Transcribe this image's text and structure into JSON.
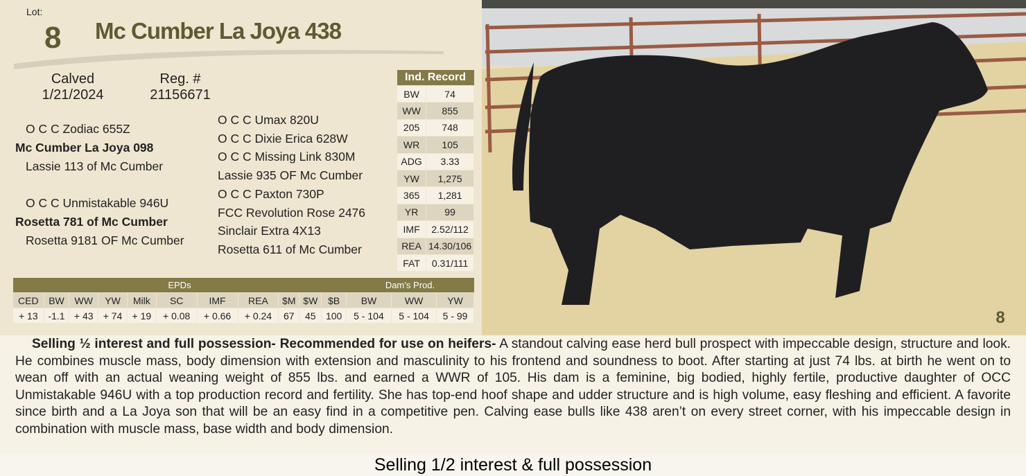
{
  "header": {
    "lot_label": "Lot:",
    "lot_number": "8",
    "name": "Mc Cumber La Joya 438"
  },
  "info": {
    "calved_label": "Calved",
    "calved": "1/21/2024",
    "reg_label": "Reg. #",
    "reg": "21156671"
  },
  "pedigree": {
    "left": [
      {
        "text": "O C C Zodiac 655Z",
        "bold": false
      },
      {
        "text": "Mc Cumber La Joya 098",
        "bold": true
      },
      {
        "text": "Lassie 113 of Mc Cumber",
        "bold": false
      },
      {
        "text": "O C C Unmistakable 946U",
        "bold": false
      },
      {
        "text": "Rosetta 781 of Mc Cumber",
        "bold": true
      },
      {
        "text": "Rosetta 9181 OF Mc Cumber",
        "bold": false
      }
    ],
    "right": [
      "O C C Umax 820U",
      "O C C Dixie Erica 628W",
      "O C C Missing Link 830M",
      "Lassie 935 OF Mc Cumber",
      "O C C Paxton 730P",
      "FCC Revolution Rose 2476",
      "Sinclair Extra 4X13",
      "Rosetta 611 of Mc Cumber"
    ]
  },
  "ind_record": {
    "title": "Ind. Record",
    "rows": [
      [
        "BW",
        "74"
      ],
      [
        "WW",
        "855"
      ],
      [
        "205",
        "748"
      ],
      [
        "WR",
        "105"
      ],
      [
        "ADG",
        "3.33"
      ],
      [
        "YW",
        "1,275"
      ],
      [
        "365",
        "1,281"
      ],
      [
        "YR",
        "99"
      ],
      [
        "IMF",
        "2.52/112"
      ],
      [
        "REA",
        "14.30/106"
      ],
      [
        "FAT",
        "0.31/111"
      ]
    ]
  },
  "epds": {
    "title": "EPDs",
    "dam_title": "Dam’s Prod.",
    "columns": [
      "CED",
      "BW",
      "WW",
      "YW",
      "Milk",
      "SC",
      "IMF",
      "REA",
      "$M",
      "$W",
      "$B",
      "BW",
      "WW",
      "YW"
    ],
    "values": [
      "+ 13",
      "-1.1",
      "+ 43",
      "+ 74",
      "+ 19",
      "+ 0.08",
      "+ 0.66",
      "+ 0.24",
      "67",
      "45",
      "100",
      "5 - 104",
      "5 - 104",
      "5 - 99"
    ]
  },
  "photo": {
    "lot_mark": "8"
  },
  "description": {
    "lead": "Selling ½ interest and full possession- Recommended for use on heifers-",
    "body": " A standout calving ease herd bull prospect with impeccable design, structure and look. He combines muscle mass, body dimension with extension and masculinity to his frontend and soundness to boot. After starting at just 74 lbs. at birth he went on to wean off with an actual weaning weight of 855 lbs. and earned a WWR of 105. His dam is a feminine, big bodied, highly fertile, productive daughter of OCC Unmistakable 946U with a top production record and fertility. She has top-end hoof shape and udder structure and is high volume, easy fleshing and efficient. A favorite since birth and a La Joya son that will be an easy find in a competitive pen. Calving ease bulls like 438 aren’t on every street corner, with his impeccable design in combination with muscle mass, base width and body dimension."
  },
  "footer": {
    "text": "Selling 1/2 interest & full possession"
  }
}
